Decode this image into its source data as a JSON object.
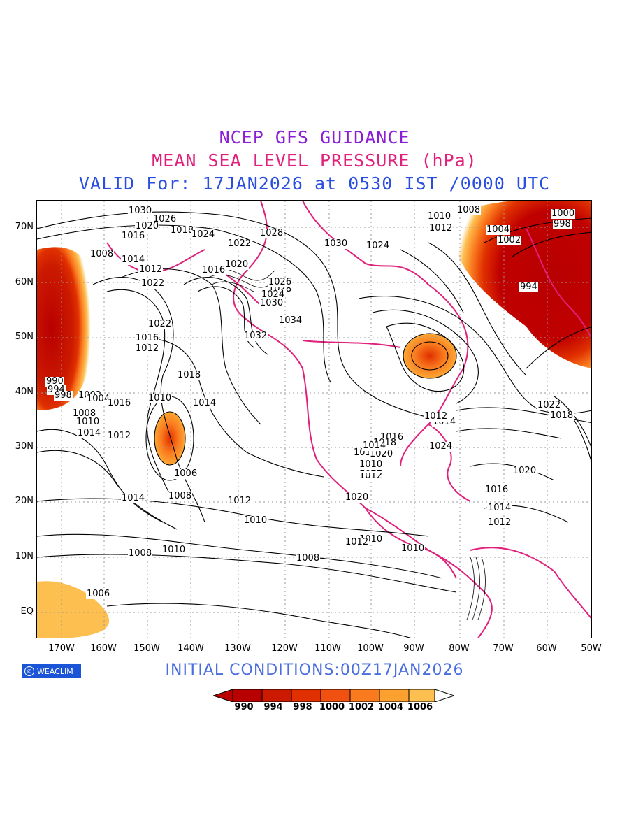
{
  "header": {
    "line1": "NCEP GFS GUIDANCE",
    "line2": "MEAN SEA LEVEL PRESSURE (hPa)",
    "line3": "VALID For: 17JAN2026 at 0530 IST /0000 UTC",
    "colors": {
      "line1": "#8a1fd6",
      "line2": "#e0207a",
      "line3": "#2a4fe0"
    }
  },
  "map": {
    "lat_labels": [
      "70N",
      "60N",
      "50N",
      "40N",
      "30N",
      "20N",
      "10N",
      "EQ"
    ],
    "lon_labels": [
      "170W",
      "160W",
      "150W",
      "140W",
      "130W",
      "120W",
      "110W",
      "100W",
      "90W",
      "80W",
      "70W",
      "60W",
      "50W"
    ],
    "contour_labels": [
      "1030",
      "1026",
      "1020",
      "1018",
      "1024",
      "1016",
      "1028",
      "1022",
      "1030",
      "1024",
      "1010",
      "1008",
      "1012",
      "1004",
      "1002",
      "1000",
      "998",
      "994",
      "1008",
      "1014",
      "1012",
      "1020",
      "1016",
      "1022",
      "1028",
      "1026",
      "1024",
      "1030",
      "1034",
      "1032",
      "1022",
      "1016",
      "1012",
      "990",
      "994",
      "998",
      "1002",
      "1004",
      "1008",
      "1010",
      "1014",
      "1016",
      "1018",
      "1010",
      "1014",
      "1012",
      "1006",
      "1008",
      "1010",
      "1020",
      "1018",
      "1012",
      "1010",
      "1008",
      "1006",
      "1008",
      "1010",
      "1014",
      "1012",
      "1016",
      "1018",
      "1020",
      "1022",
      "1024",
      "1014",
      "1012",
      "1010",
      "1012",
      "1010",
      "1014",
      "1020",
      "1022",
      "1018",
      "1016",
      "1014",
      "1012"
    ],
    "fill_colors": [
      "#b80000",
      "#cc1a00",
      "#e03000",
      "#f05010",
      "#fa7a1e",
      "#fca030",
      "#fdbf50"
    ]
  },
  "footer": {
    "initial_conditions": "INITIAL CONDITIONS:00Z17JAN2026",
    "logo_text": "WEACLIM",
    "colorbar_labels": [
      "990",
      "994",
      "998",
      "1000",
      "1002",
      "1004",
      "1006"
    ]
  }
}
